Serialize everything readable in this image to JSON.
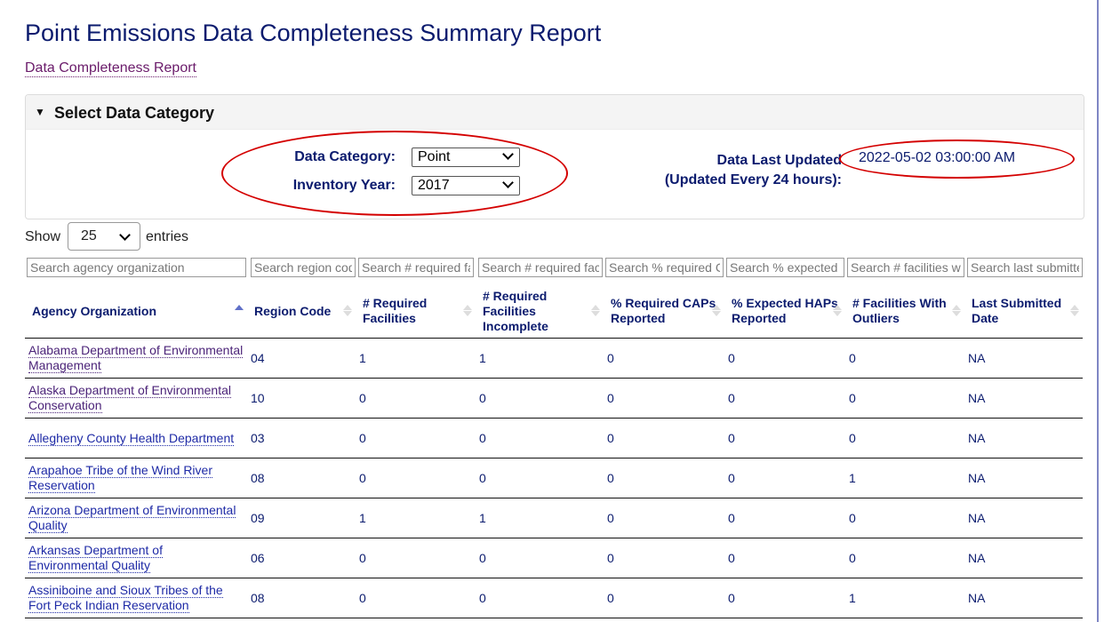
{
  "page": {
    "title": "Point Emissions Data Completeness Summary Report",
    "subtitle_link": "Data Completeness Report"
  },
  "panel": {
    "title": "Select Data Category",
    "data_category_label": "Data Category:",
    "data_category_value": "Point",
    "inventory_year_label": "Inventory Year:",
    "inventory_year_value": "2017",
    "last_updated_label_line1": "Data Last Updated",
    "last_updated_label_line2": "(Updated Every 24 hours):",
    "last_updated_value": "2022-05-02 03:00:00 AM"
  },
  "length_control": {
    "show": "Show",
    "value": "25",
    "entries": "entries"
  },
  "filters": {
    "agency": "Search agency organization",
    "region": "Search region code",
    "required": "Search # required facilities",
    "incomplete": "Search # required facilities incomplete",
    "caps": "Search % required CAPs reported",
    "haps": "Search % expected HAPs reported",
    "outliers": "Search # facilities with outliers",
    "submitted": "Search last submitted date"
  },
  "table": {
    "headers": {
      "agency": "Agency Organization",
      "region": "Region Code",
      "required": "# Required Facilities",
      "incomplete": "# Required Facilities Incomplete",
      "caps": "% Required CAPs Reported",
      "haps": "% Expected HAPs Reported",
      "outliers": "# Facilities With Outliers",
      "submitted": "Last Submitted Date"
    },
    "rows": [
      {
        "agency": "Alabama Department of Environmental Management",
        "region": "04",
        "required": "1",
        "incomplete": "1",
        "caps": "0",
        "haps": "0",
        "outliers": "0",
        "submitted": "NA"
      },
      {
        "agency": "Alaska Department of Environmental Conservation",
        "region": "10",
        "required": "0",
        "incomplete": "0",
        "caps": "0",
        "haps": "0",
        "outliers": "0",
        "submitted": "NA"
      },
      {
        "agency": "Allegheny County Health Department",
        "region": "03",
        "required": "0",
        "incomplete": "0",
        "caps": "0",
        "haps": "0",
        "outliers": "0",
        "submitted": "NA"
      },
      {
        "agency": "Arapahoe Tribe of the Wind River Reservation",
        "region": "08",
        "required": "0",
        "incomplete": "0",
        "caps": "0",
        "haps": "0",
        "outliers": "1",
        "submitted": "NA"
      },
      {
        "agency": "Arizona Department of Environmental Quality",
        "region": "09",
        "required": "1",
        "incomplete": "1",
        "caps": "0",
        "haps": "0",
        "outliers": "0",
        "submitted": "NA"
      },
      {
        "agency": "Arkansas Department of Environmental Quality",
        "region": "06",
        "required": "0",
        "incomplete": "0",
        "caps": "0",
        "haps": "0",
        "outliers": "0",
        "submitted": "NA"
      },
      {
        "agency": "Assiniboine and Sioux Tribes of the Fort Peck Indian Reservation",
        "region": "08",
        "required": "0",
        "incomplete": "0",
        "caps": "0",
        "haps": "0",
        "outliers": "1",
        "submitted": "NA"
      }
    ]
  }
}
